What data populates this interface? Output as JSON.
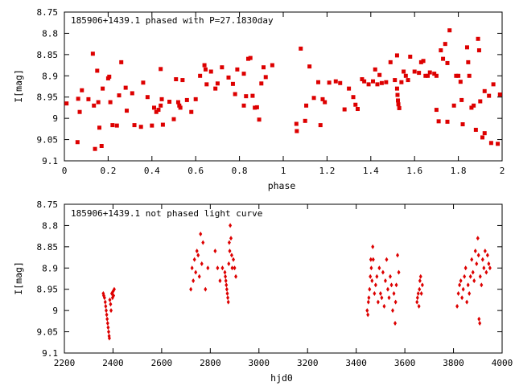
{
  "chart_data": [
    {
      "type": "scatter",
      "title": "185906+1439.1 phased with P=27.1830day",
      "xlabel": "phase",
      "ylabel": "I[mag]",
      "xlim": [
        0,
        2
      ],
      "ylim": [
        9.1,
        8.75
      ],
      "y_inverted": true,
      "grid": false,
      "x_ticks": [
        0,
        0.2,
        0.4,
        0.6,
        0.8,
        1,
        1.2,
        1.4,
        1.6,
        1.8,
        2
      ],
      "x_tick_labels": [
        "0",
        "0.2",
        "0.4",
        "0.6",
        "0.8",
        "1",
        "1.2",
        "1.4",
        "1.6",
        "1.8",
        "2"
      ],
      "y_ticks": [
        8.75,
        8.8,
        8.85,
        8.9,
        8.95,
        9,
        9.05,
        9.1
      ],
      "y_tick_labels": [
        "8.75",
        "8.8",
        "8.85",
        "8.9",
        "8.95",
        "9",
        "9.05",
        "9.1"
      ],
      "marker_color": "#dd0000",
      "marker": "square",
      "points": [
        [
          0.01,
          8.965
        ],
        [
          0.06,
          9.056
        ],
        [
          0.063,
          8.954
        ],
        [
          0.07,
          8.985
        ],
        [
          0.08,
          8.934
        ],
        [
          0.11,
          8.955
        ],
        [
          0.13,
          8.848
        ],
        [
          0.135,
          8.97
        ],
        [
          0.14,
          9.072
        ],
        [
          0.15,
          8.888
        ],
        [
          0.155,
          8.962
        ],
        [
          0.16,
          9.022
        ],
        [
          0.17,
          9.065
        ],
        [
          0.175,
          8.93
        ],
        [
          0.2,
          8.906
        ],
        [
          0.205,
          8.902
        ],
        [
          0.21,
          8.962
        ],
        [
          0.22,
          9.016
        ],
        [
          0.24,
          9.017
        ],
        [
          0.25,
          8.946
        ],
        [
          0.26,
          8.868
        ],
        [
          0.28,
          8.928
        ],
        [
          0.285,
          8.982
        ],
        [
          0.31,
          8.941
        ],
        [
          0.32,
          9.016
        ],
        [
          0.35,
          9.02
        ],
        [
          0.36,
          8.916
        ],
        [
          0.38,
          8.95
        ],
        [
          0.4,
          9.017
        ],
        [
          0.41,
          8.975
        ],
        [
          0.42,
          8.985
        ],
        [
          0.43,
          8.98
        ],
        [
          0.44,
          8.884
        ],
        [
          0.44,
          8.97
        ],
        [
          0.445,
          8.955
        ],
        [
          0.45,
          9.015
        ],
        [
          0.48,
          8.961
        ],
        [
          0.5,
          9.002
        ],
        [
          0.51,
          8.908
        ],
        [
          0.52,
          8.962
        ],
        [
          0.525,
          8.97
        ],
        [
          0.53,
          8.975
        ],
        [
          0.54,
          8.91
        ],
        [
          0.56,
          8.957
        ],
        [
          0.58,
          8.985
        ],
        [
          0.6,
          8.955
        ],
        [
          0.62,
          8.9
        ],
        [
          0.64,
          8.875
        ],
        [
          0.645,
          8.885
        ],
        [
          0.65,
          8.92
        ],
        [
          0.67,
          8.89
        ],
        [
          0.69,
          8.93
        ],
        [
          0.7,
          8.918
        ],
        [
          0.72,
          8.88
        ],
        [
          0.75,
          8.904
        ],
        [
          0.77,
          8.919
        ],
        [
          0.78,
          8.943
        ],
        [
          0.79,
          8.885
        ],
        [
          0.82,
          8.97
        ],
        [
          0.82,
          8.895
        ],
        [
          0.83,
          8.948
        ],
        [
          0.84,
          8.86
        ],
        [
          0.85,
          8.858
        ],
        [
          0.86,
          8.947
        ],
        [
          0.87,
          8.975
        ],
        [
          0.88,
          8.974
        ],
        [
          0.89,
          9.003
        ],
        [
          0.9,
          8.918
        ],
        [
          0.91,
          8.88
        ],
        [
          0.92,
          8.903
        ],
        [
          0.95,
          8.875
        ],
        [
          1.06,
          9.013
        ],
        [
          1.062,
          9.03
        ],
        [
          1.08,
          8.836
        ],
        [
          1.1,
          9.006
        ],
        [
          1.105,
          8.97
        ],
        [
          1.12,
          8.878
        ],
        [
          1.14,
          8.952
        ],
        [
          1.16,
          8.915
        ],
        [
          1.17,
          9.016
        ],
        [
          1.18,
          8.955
        ],
        [
          1.19,
          8.962
        ],
        [
          1.21,
          8.916
        ],
        [
          1.24,
          8.913
        ],
        [
          1.26,
          8.917
        ],
        [
          1.28,
          8.979
        ],
        [
          1.3,
          8.93
        ],
        [
          1.32,
          8.95
        ],
        [
          1.33,
          8.968
        ],
        [
          1.34,
          8.978
        ],
        [
          1.36,
          8.908
        ],
        [
          1.37,
          8.913
        ],
        [
          1.39,
          8.92
        ],
        [
          1.41,
          8.913
        ],
        [
          1.42,
          8.885
        ],
        [
          1.43,
          8.92
        ],
        [
          1.44,
          8.898
        ],
        [
          1.45,
          8.917
        ],
        [
          1.47,
          8.915
        ],
        [
          1.49,
          8.868
        ],
        [
          1.51,
          8.91
        ],
        [
          1.52,
          8.852
        ],
        [
          1.52,
          8.93
        ],
        [
          1.522,
          8.945
        ],
        [
          1.524,
          8.958
        ],
        [
          1.526,
          8.967
        ],
        [
          1.53,
          8.976
        ],
        [
          1.54,
          8.915
        ],
        [
          1.55,
          8.89
        ],
        [
          1.56,
          8.9
        ],
        [
          1.57,
          8.91
        ],
        [
          1.58,
          8.855
        ],
        [
          1.6,
          8.89
        ],
        [
          1.62,
          8.893
        ],
        [
          1.63,
          8.868
        ],
        [
          1.64,
          8.865
        ],
        [
          1.65,
          8.9
        ],
        [
          1.66,
          8.9
        ],
        [
          1.67,
          8.892
        ],
        [
          1.69,
          8.895
        ],
        [
          1.7,
          8.98
        ],
        [
          1.7,
          8.9
        ],
        [
          1.71,
          9.007
        ],
        [
          1.72,
          8.84
        ],
        [
          1.73,
          8.86
        ],
        [
          1.74,
          8.825
        ],
        [
          1.75,
          8.87
        ],
        [
          1.75,
          9.008
        ],
        [
          1.76,
          8.793
        ],
        [
          1.78,
          8.97
        ],
        [
          1.79,
          8.9
        ],
        [
          1.8,
          8.9
        ],
        [
          1.81,
          8.914
        ],
        [
          1.815,
          8.957
        ],
        [
          1.82,
          9.014
        ],
        [
          1.84,
          8.833
        ],
        [
          1.845,
          8.868
        ],
        [
          1.85,
          8.9
        ],
        [
          1.86,
          8.975
        ],
        [
          1.87,
          8.97
        ],
        [
          1.88,
          9.027
        ],
        [
          1.89,
          8.813
        ],
        [
          1.895,
          8.84
        ],
        [
          1.9,
          8.96
        ],
        [
          1.91,
          9.045
        ],
        [
          1.92,
          8.936
        ],
        [
          1.92,
          9.035
        ],
        [
          1.94,
          8.947
        ],
        [
          1.95,
          9.058
        ],
        [
          1.96,
          8.92
        ],
        [
          1.98,
          9.06
        ],
        [
          1.99,
          8.944
        ]
      ]
    },
    {
      "type": "scatter",
      "title": "185906+1439.1 not phased light curve",
      "xlabel": "hjd0",
      "ylabel": "I[mag]",
      "xlim": [
        2200,
        4000
      ],
      "ylim": [
        9.1,
        8.75
      ],
      "y_inverted": true,
      "grid": false,
      "x_ticks": [
        2200,
        2400,
        2600,
        2800,
        3000,
        3200,
        3400,
        3600,
        3800,
        4000
      ],
      "x_tick_labels": [
        "2200",
        "2400",
        "2600",
        "2800",
        "3000",
        "3200",
        "3400",
        "3600",
        "3800",
        "4000"
      ],
      "y_ticks": [
        8.75,
        8.8,
        8.85,
        8.9,
        8.95,
        9,
        9.05,
        9.1
      ],
      "y_tick_labels": [
        "8.75",
        "8.8",
        "8.85",
        "8.9",
        "8.95",
        "9",
        "9.05",
        "9.1"
      ],
      "marker_color": "#dd0000",
      "marker": "diamond",
      "points": [
        [
          2365,
          8.97
        ],
        [
          2368,
          8.98
        ],
        [
          2370,
          8.99
        ],
        [
          2372,
          9.0
        ],
        [
          2374,
          9.01
        ],
        [
          2376,
          9.02
        ],
        [
          2378,
          9.03
        ],
        [
          2380,
          9.04
        ],
        [
          2382,
          9.05
        ],
        [
          2384,
          9.06
        ],
        [
          2385,
          9.065
        ],
        [
          2387,
          8.975
        ],
        [
          2390,
          8.985
        ],
        [
          2392,
          9.0
        ],
        [
          2395,
          8.96
        ],
        [
          2398,
          8.97
        ],
        [
          2400,
          8.955
        ],
        [
          2402,
          8.965
        ],
        [
          2405,
          8.95
        ],
        [
          2360,
          8.96
        ],
        [
          2362,
          8.965
        ],
        [
          2720,
          8.95
        ],
        [
          2725,
          8.9
        ],
        [
          2730,
          8.93
        ],
        [
          2735,
          8.88
        ],
        [
          2740,
          8.91
        ],
        [
          2745,
          8.86
        ],
        [
          2750,
          8.87
        ],
        [
          2755,
          8.92
        ],
        [
          2760,
          8.82
        ],
        [
          2765,
          8.89
        ],
        [
          2770,
          8.84
        ],
        [
          2780,
          8.95
        ],
        [
          2790,
          8.9
        ],
        [
          2820,
          8.86
        ],
        [
          2830,
          8.9
        ],
        [
          2840,
          8.93
        ],
        [
          2850,
          8.9
        ],
        [
          2860,
          8.91
        ],
        [
          2862,
          8.92
        ],
        [
          2864,
          8.93
        ],
        [
          2866,
          8.94
        ],
        [
          2868,
          8.95
        ],
        [
          2870,
          8.96
        ],
        [
          2872,
          8.97
        ],
        [
          2874,
          8.98
        ],
        [
          2876,
          8.89
        ],
        [
          2878,
          8.84
        ],
        [
          2880,
          8.86
        ],
        [
          2882,
          8.8
        ],
        [
          2885,
          8.83
        ],
        [
          2888,
          8.87
        ],
        [
          2890,
          8.9
        ],
        [
          2895,
          8.88
        ],
        [
          2900,
          8.9
        ],
        [
          2905,
          8.92
        ],
        [
          3445,
          9.0
        ],
        [
          3448,
          9.01
        ],
        [
          3450,
          8.98
        ],
        [
          3452,
          8.97
        ],
        [
          3455,
          8.95
        ],
        [
          3458,
          8.92
        ],
        [
          3460,
          8.88
        ],
        [
          3462,
          8.9
        ],
        [
          3465,
          8.93
        ],
        [
          3468,
          8.85
        ],
        [
          3470,
          8.88
        ],
        [
          3475,
          8.96
        ],
        [
          3480,
          8.94
        ],
        [
          3485,
          8.92
        ],
        [
          3490,
          8.98
        ],
        [
          3495,
          8.9
        ],
        [
          3500,
          8.96
        ],
        [
          3505,
          8.97
        ],
        [
          3510,
          8.91
        ],
        [
          3515,
          8.99
        ],
        [
          3520,
          8.93
        ],
        [
          3525,
          8.88
        ],
        [
          3530,
          8.95
        ],
        [
          3535,
          8.97
        ],
        [
          3540,
          8.92
        ],
        [
          3545,
          8.94
        ],
        [
          3550,
          9.0
        ],
        [
          3555,
          8.96
        ],
        [
          3560,
          9.03
        ],
        [
          3562,
          8.98
        ],
        [
          3565,
          8.94
        ],
        [
          3570,
          8.87
        ],
        [
          3575,
          8.91
        ],
        [
          3650,
          8.98
        ],
        [
          3652,
          8.97
        ],
        [
          3655,
          8.96
        ],
        [
          3658,
          8.99
        ],
        [
          3660,
          8.95
        ],
        [
          3662,
          8.93
        ],
        [
          3665,
          8.92
        ],
        [
          3668,
          8.96
        ],
        [
          3672,
          8.94
        ],
        [
          3815,
          8.99
        ],
        [
          3820,
          8.96
        ],
        [
          3825,
          8.94
        ],
        [
          3830,
          8.93
        ],
        [
          3835,
          8.97
        ],
        [
          3840,
          8.95
        ],
        [
          3845,
          8.92
        ],
        [
          3850,
          8.9
        ],
        [
          3855,
          8.98
        ],
        [
          3860,
          8.94
        ],
        [
          3865,
          8.96
        ],
        [
          3870,
          8.92
        ],
        [
          3875,
          8.88
        ],
        [
          3880,
          8.91
        ],
        [
          3885,
          8.93
        ],
        [
          3890,
          8.86
        ],
        [
          3895,
          8.89
        ],
        [
          3900,
          8.83
        ],
        [
          3903,
          8.87
        ],
        [
          3905,
          9.02
        ],
        [
          3908,
          9.03
        ],
        [
          3910,
          8.92
        ],
        [
          3915,
          8.94
        ],
        [
          3920,
          8.88
        ],
        [
          3925,
          8.9
        ],
        [
          3930,
          8.86
        ],
        [
          3935,
          8.91
        ],
        [
          3940,
          8.87
        ],
        [
          3945,
          8.89
        ],
        [
          3950,
          8.9
        ]
      ]
    }
  ]
}
